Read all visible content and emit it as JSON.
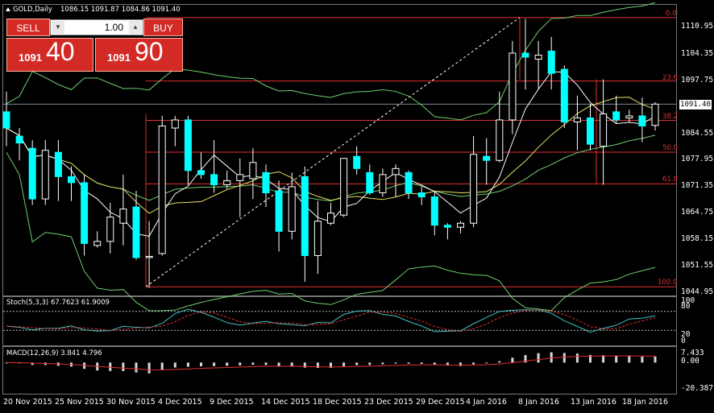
{
  "chart_header": {
    "symbol": "GOLD,Daily",
    "ohlc": "1086.15 1091.87 1084.86 1091.40"
  },
  "trade_panel": {
    "sell_label": "SELL",
    "buy_label": "BUY",
    "lot_value": "1.00",
    "sell_price_small": "1091",
    "sell_price_big": "40",
    "buy_price_small": "1091",
    "buy_price_big": "90"
  },
  "current_price_tag": "1091.40",
  "price_axis": [
    "1110.95",
    "1104.35",
    "1097.75",
    "1091.40",
    "1084.55",
    "1077.95",
    "1071.35",
    "1064.75",
    "1058.15",
    "1051.55",
    "1044.95"
  ],
  "fib_levels": [
    "0.0",
    "23.6",
    "38.2",
    "50.0",
    "61.8",
    "100.0"
  ],
  "stoch": {
    "label": "Stoch(5,3,3) 67.7623 61.9009",
    "axis": [
      "100",
      "80",
      "20",
      "0"
    ]
  },
  "macd": {
    "label": "MACD(12,26,9) 3.841 4.796",
    "axis": [
      "7.433",
      "0.00",
      "-20.387"
    ]
  },
  "dates": [
    "20 Nov 2015",
    "25 Nov 2015",
    "30 Nov 2015",
    "4 Dec 2015",
    "9 Dec 2015",
    "14 Dec 2015",
    "18 Dec 2015",
    "23 Dec 2015",
    "29 Dec 2015",
    "4 Jan 2016",
    "8 Jan 2016",
    "13 Jan 2016",
    "18 Jan 2016"
  ],
  "colors": {
    "bull": "#000000",
    "bear": "#00ffff",
    "wick": "#ffffff",
    "fib": "#e03030",
    "bands": "#6fcf6f",
    "ma_fast": "#ffffff",
    "ma_slow": "#e8e060",
    "stoch_main": "#40c0c0",
    "stoch_signal": "#e03030",
    "macd_hist": "#d8d8d8",
    "macd_signal": "#e03030"
  },
  "chart_data": {
    "type": "candlestick",
    "symbol": "GOLD",
    "timeframe": "Daily",
    "candles": [
      {
        "o": 1089.5,
        "h": 1094.5,
        "l": 1081.0,
        "c": 1085.5
      },
      {
        "o": 1083.5,
        "h": 1085.5,
        "l": 1077.5,
        "c": 1081.8
      },
      {
        "o": 1080.5,
        "h": 1082.5,
        "l": 1066.5,
        "c": 1068.0
      },
      {
        "o": 1068.0,
        "h": 1082.5,
        "l": 1066.5,
        "c": 1080.0
      },
      {
        "o": 1079.5,
        "h": 1082.5,
        "l": 1067.5,
        "c": 1073.5
      },
      {
        "o": 1073.5,
        "h": 1076.0,
        "l": 1067.5,
        "c": 1072.0
      },
      {
        "o": 1072.0,
        "h": 1074.0,
        "l": 1054.0,
        "c": 1057.0
      },
      {
        "o": 1056.5,
        "h": 1060.0,
        "l": 1056.0,
        "c": 1057.5
      },
      {
        "o": 1057.5,
        "h": 1067.0,
        "l": 1054.5,
        "c": 1063.5
      },
      {
        "o": 1062.0,
        "h": 1074.0,
        "l": 1056.5,
        "c": 1065.5
      },
      {
        "o": 1066.0,
        "h": 1070.0,
        "l": 1053.0,
        "c": 1053.5
      },
      {
        "o": 1053.5,
        "h": 1062.5,
        "l": 1046.0,
        "c": 1053.8
      },
      {
        "o": 1054.5,
        "h": 1088.5,
        "l": 1054.0,
        "c": 1086.0
      },
      {
        "o": 1085.5,
        "h": 1088.5,
        "l": 1081.0,
        "c": 1087.5
      },
      {
        "o": 1087.5,
        "h": 1088.5,
        "l": 1071.5,
        "c": 1075.0
      },
      {
        "o": 1075.0,
        "h": 1079.5,
        "l": 1073.0,
        "c": 1074.0
      },
      {
        "o": 1074.0,
        "h": 1082.5,
        "l": 1069.5,
        "c": 1071.5
      },
      {
        "o": 1071.5,
        "h": 1075.0,
        "l": 1070.5,
        "c": 1072.5
      },
      {
        "o": 1072.5,
        "h": 1078.0,
        "l": 1063.5,
        "c": 1074.0
      },
      {
        "o": 1073.0,
        "h": 1080.5,
        "l": 1068.0,
        "c": 1077.0
      },
      {
        "o": 1074.5,
        "h": 1076.5,
        "l": 1066.0,
        "c": 1069.5
      },
      {
        "o": 1070.0,
        "h": 1072.5,
        "l": 1055.0,
        "c": 1060.0
      },
      {
        "o": 1060.0,
        "h": 1074.5,
        "l": 1058.0,
        "c": 1071.0
      },
      {
        "o": 1073.5,
        "h": 1076.0,
        "l": 1047.5,
        "c": 1054.0
      },
      {
        "o": 1054.0,
        "h": 1067.5,
        "l": 1049.5,
        "c": 1062.5
      },
      {
        "o": 1062.0,
        "h": 1067.0,
        "l": 1061.5,
        "c": 1064.5
      },
      {
        "o": 1064.0,
        "h": 1078.0,
        "l": 1063.5,
        "c": 1078.0
      },
      {
        "o": 1078.5,
        "h": 1081.0,
        "l": 1074.0,
        "c": 1075.5
      },
      {
        "o": 1074.5,
        "h": 1076.5,
        "l": 1069.0,
        "c": 1069.5
      },
      {
        "o": 1069.5,
        "h": 1075.5,
        "l": 1068.5,
        "c": 1074.0
      },
      {
        "o": 1074.0,
        "h": 1076.5,
        "l": 1068.5,
        "c": 1075.5
      },
      {
        "o": 1074.5,
        "h": 1075.0,
        "l": 1068.0,
        "c": 1069.5
      },
      {
        "o": 1069.5,
        "h": 1071.0,
        "l": 1066.5,
        "c": 1068.5
      },
      {
        "o": 1068.5,
        "h": 1070.0,
        "l": 1059.0,
        "c": 1061.5
      },
      {
        "o": 1061.5,
        "h": 1062.0,
        "l": 1058.0,
        "c": 1061.0
      },
      {
        "o": 1061.0,
        "h": 1062.5,
        "l": 1059.5,
        "c": 1062.0
      },
      {
        "o": 1062.0,
        "h": 1083.5,
        "l": 1061.0,
        "c": 1079.0
      },
      {
        "o": 1078.5,
        "h": 1083.0,
        "l": 1071.5,
        "c": 1077.5
      },
      {
        "o": 1077.5,
        "h": 1094.5,
        "l": 1077.0,
        "c": 1087.5
      },
      {
        "o": 1087.5,
        "h": 1107.0,
        "l": 1084.0,
        "c": 1104.0
      },
      {
        "o": 1104.0,
        "h": 1112.5,
        "l": 1095.0,
        "c": 1103.0
      },
      {
        "o": 1102.5,
        "h": 1107.0,
        "l": 1095.0,
        "c": 1103.5
      },
      {
        "o": 1104.5,
        "h": 1108.0,
        "l": 1095.0,
        "c": 1099.0
      },
      {
        "o": 1100.0,
        "h": 1101.0,
        "l": 1085.5,
        "c": 1087.0
      },
      {
        "o": 1087.0,
        "h": 1093.5,
        "l": 1080.0,
        "c": 1088.0
      },
      {
        "o": 1088.0,
        "h": 1091.5,
        "l": 1080.0,
        "c": 1081.5
      },
      {
        "o": 1081.0,
        "h": 1097.5,
        "l": 1071.5,
        "c": 1089.0
      },
      {
        "o": 1089.5,
        "h": 1093.5,
        "l": 1086.5,
        "c": 1087.5
      },
      {
        "o": 1088.0,
        "h": 1090.0,
        "l": 1087.0,
        "c": 1088.5
      },
      {
        "o": 1088.5,
        "h": 1093.0,
        "l": 1082.0,
        "c": 1086.0
      },
      {
        "o": 1086.15,
        "h": 1091.87,
        "l": 1084.86,
        "c": 1091.4
      }
    ],
    "ylim": [
      1044.95,
      1110.95
    ],
    "fibonacci": {
      "high": 1112.8,
      "low": 1046.3
    },
    "stochastic": {
      "main": 67.7623,
      "signal": 61.9009,
      "levels": [
        80,
        20
      ]
    },
    "macd": {
      "main": 3.841,
      "signal": 4.796,
      "ylim": [
        -20.387,
        7.433
      ]
    }
  }
}
